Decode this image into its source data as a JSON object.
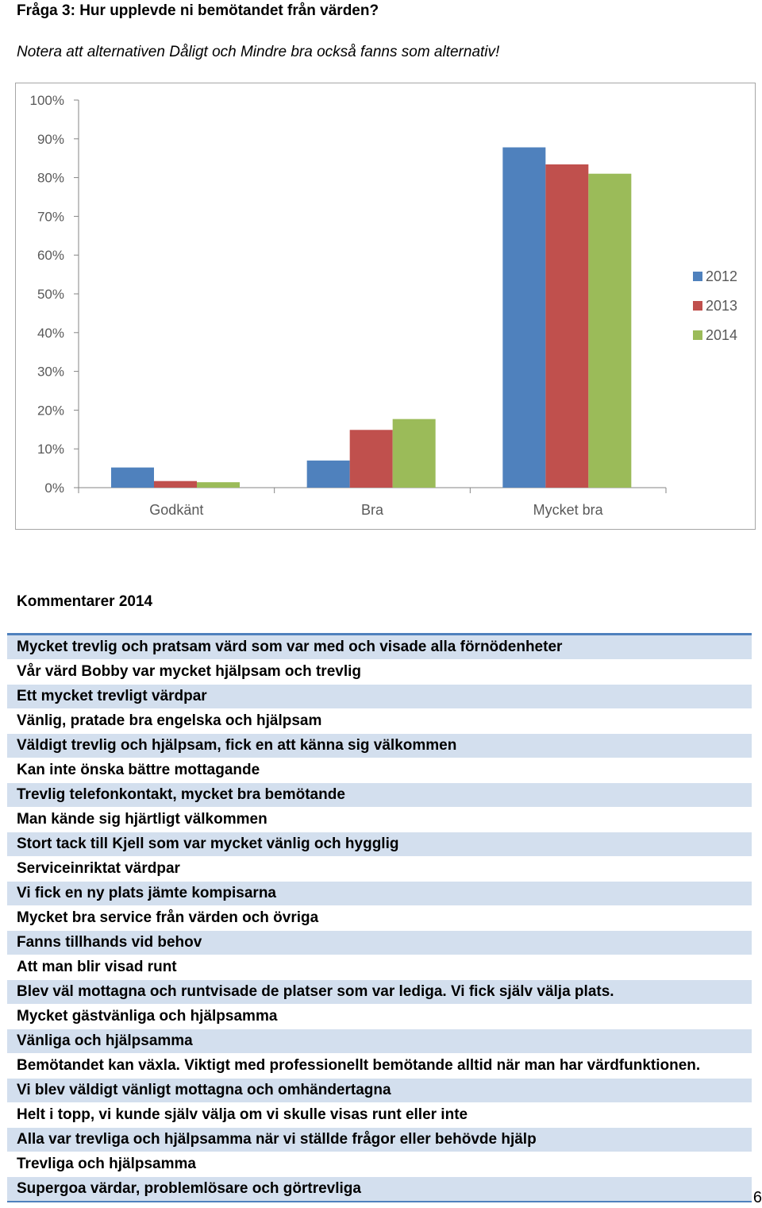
{
  "heading": "Fråga 3: Hur upplevde ni bemötandet från värden?",
  "note": "Notera att alternativen Dåligt och Mindre bra också fanns som alternativ!",
  "chart_data": {
    "type": "bar",
    "title": "",
    "xlabel": "",
    "ylabel": "",
    "categories": [
      "Godkänt",
      "Bra",
      "Mycket bra"
    ],
    "series": [
      {
        "name": "2012",
        "color": "#4f81bd",
        "values": [
          5.2,
          7.0,
          87.8
        ]
      },
      {
        "name": "2013",
        "color": "#c0504d",
        "values": [
          1.7,
          14.9,
          83.4
        ]
      },
      {
        "name": "2014",
        "color": "#9bbb59",
        "values": [
          1.4,
          17.7,
          81.0
        ]
      }
    ],
    "ylim": [
      0,
      100
    ],
    "yticks": [
      "0%",
      "10%",
      "20%",
      "30%",
      "40%",
      "50%",
      "60%",
      "70%",
      "80%",
      "90%",
      "100%"
    ],
    "grid": false,
    "legend": "right"
  },
  "comments": {
    "title": "Kommentarer 2014",
    "items": [
      "Mycket trevlig och pratsam värd som var med och visade alla förnödenheter",
      "Vår värd Bobby var mycket hjälpsam och trevlig",
      "Ett mycket trevligt värdpar",
      "Vänlig, pratade bra engelska och hjälpsam",
      "Väldigt trevlig och hjälpsam, fick en att känna sig välkommen",
      "Kan inte önska bättre mottagande",
      "Trevlig telefonkontakt, mycket bra bemötande",
      "Man kände sig hjärtligt välkommen",
      "Stort tack till Kjell som var mycket vänlig och hygglig",
      "Serviceinriktat värdpar",
      "Vi fick en ny plats jämte kompisarna",
      "Mycket bra service från värden och övriga",
      "Fanns tillhands vid behov",
      "Att man blir visad runt",
      "Blev väl mottagna och runtvisade de platser som var lediga. Vi fick själv välja plats.",
      "Mycket gästvänliga och hjälpsamma",
      "Vänliga och hjälpsamma",
      "Bemötandet kan växla. Viktigt med professionellt bemötande alltid när man har värdfunktionen.",
      "Vi blev väldigt vänligt mottagna och omhändertagna",
      "Helt i topp, vi kunde själv välja om vi skulle visas runt eller inte",
      "Alla var trevliga och hjälpsamma när vi ställde frågor eller behövde hjälp",
      "Trevliga och hjälpsamma",
      "Supergoa värdar, problemlösare och görtrevliga"
    ]
  },
  "page_number": "6"
}
